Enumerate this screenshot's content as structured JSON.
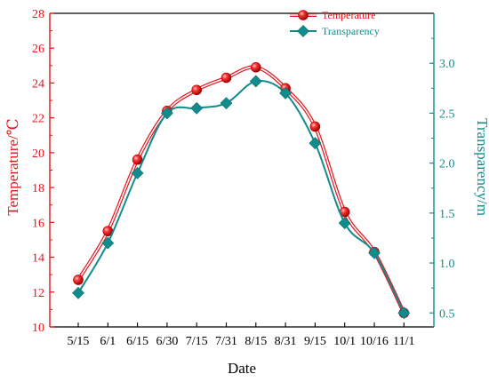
{
  "chart_data": {
    "type": "line",
    "title": "",
    "xlabel": "Date",
    "categories": [
      "5/15",
      "6/1",
      "6/15",
      "6/30",
      "7/15",
      "7/31",
      "8/15",
      "8/31",
      "9/15",
      "10/1",
      "10/16",
      "11/1"
    ],
    "y_left": {
      "label": "Temperature/℃",
      "range": [
        10,
        28
      ],
      "ticks": [
        "10",
        "12",
        "14",
        "16",
        "18",
        "20",
        "22",
        "24",
        "26",
        "28"
      ],
      "color": "#e8141c"
    },
    "y_right": {
      "label": "Transparency/m",
      "range": [
        0.36,
        3.5
      ],
      "ticks": [
        "0.5",
        "1.0",
        "1.5",
        "2.0",
        "2.5",
        "3.0"
      ],
      "color": "#118c8c"
    },
    "series": [
      {
        "name": "Temperature",
        "axis": "left",
        "color": "#e8141c",
        "marker": "circle",
        "values": [
          12.7,
          15.5,
          19.6,
          22.4,
          23.6,
          24.3,
          24.9,
          23.7,
          21.5,
          16.6,
          14.3,
          10.8
        ]
      },
      {
        "name": "Transparency",
        "axis": "right",
        "color": "#118c8c",
        "marker": "diamond",
        "values": [
          0.7,
          1.2,
          1.9,
          2.5,
          2.55,
          2.6,
          2.82,
          2.7,
          2.2,
          1.4,
          1.1,
          0.5
        ]
      }
    ],
    "grid": false,
    "legend": "top-right"
  }
}
